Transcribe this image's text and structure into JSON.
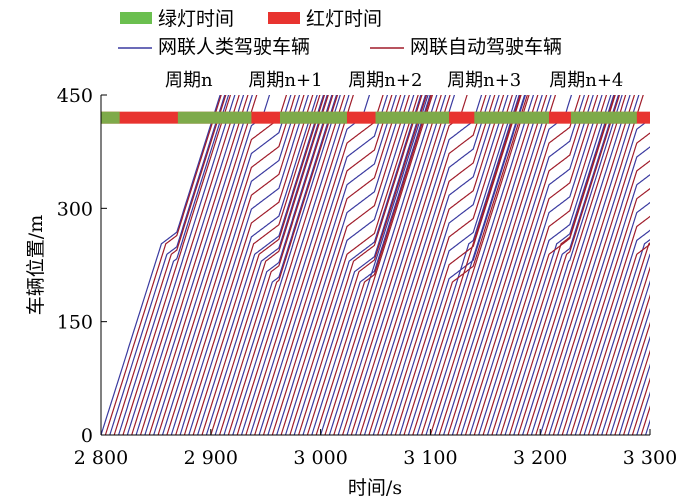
{
  "chart_data": {
    "type": "line",
    "xlabel": "时间/s",
    "ylabel": "车辆位置/m",
    "xlim": [
      2800,
      3300
    ],
    "ylim": [
      0,
      450
    ],
    "x_ticks": [
      2800,
      2900,
      3000,
      3100,
      3200,
      3300
    ],
    "x_tick_labels": [
      "2 800",
      "2 900",
      "3 000",
      "3 100",
      "3 200",
      "3 300"
    ],
    "y_ticks": [
      0,
      150,
      300,
      450
    ],
    "y_tick_labels": [
      "0",
      "150",
      "300",
      "450"
    ],
    "legend": {
      "placement": "top",
      "entries": [
        {
          "label": "绿灯时间",
          "color": "#6bbf4f",
          "kind": "bar"
        },
        {
          "label": "红灯时间",
          "color": "#e8332f",
          "kind": "bar"
        },
        {
          "label": "网联人类驾驶车辆",
          "color": "#3a3aa0",
          "kind": "line"
        },
        {
          "label": "网联自动驾驶车辆",
          "color": "#a01c2a",
          "kind": "line"
        }
      ]
    },
    "signal": {
      "position": 420,
      "green_phases": [
        [
          2800,
          2817
        ],
        [
          2870,
          2937
        ],
        [
          2963,
          3024
        ],
        [
          3050,
          3117
        ],
        [
          3140,
          3208
        ],
        [
          3228,
          3288
        ]
      ],
      "green_color": "#6bbf4f",
      "red_color": "#e8332f"
    },
    "cycle_labels": [
      {
        "label": "周期n",
        "x": 2880
      },
      {
        "label": "周期n+1",
        "x": 2968
      },
      {
        "label": "周期n+2",
        "x": 3059
      },
      {
        "label": "周期n+3",
        "x": 3149
      },
      {
        "label": "周期n+4",
        "x": 3242
      }
    ],
    "series": [
      {
        "color": "#3a3aa0",
        "start_times": [
          2800,
          2808,
          2816,
          2824,
          2832,
          2840,
          2848,
          2856,
          2864,
          2872,
          2880,
          2888,
          2896,
          2904,
          2912,
          2920,
          2928,
          2936,
          2944,
          2952,
          2960,
          2968,
          2976,
          2984,
          2992,
          3000,
          3008,
          3016,
          3024,
          3032,
          3040,
          3048,
          3056,
          3064,
          3072,
          3080,
          3088,
          3096,
          3104,
          3112,
          3120,
          3128,
          3136,
          3144,
          3152,
          3160,
          3168,
          3176,
          3184,
          3192,
          3200,
          3208,
          3216,
          3224,
          3232,
          3240,
          3248,
          3256,
          3264,
          3272,
          3280,
          3288,
          3296
        ]
      },
      {
        "color": "#a01c2a",
        "start_times": [
          2804,
          2812,
          2820,
          2828,
          2836,
          2844,
          2852,
          2860,
          2868,
          2876,
          2884,
          2892,
          2900,
          2908,
          2916,
          2924,
          2932,
          2940,
          2948,
          2956,
          2964,
          2972,
          2980,
          2988,
          2996,
          3004,
          3012,
          3020,
          3028,
          3036,
          3044,
          3052,
          3060,
          3068,
          3076,
          3084,
          3092,
          3100,
          3108,
          3116,
          3124,
          3132,
          3140,
          3148,
          3156,
          3164,
          3172,
          3180,
          3188,
          3196,
          3204,
          3212,
          3220,
          3228,
          3236,
          3244,
          3252,
          3260,
          3268,
          3276,
          3284,
          3292,
          3300
        ]
      }
    ]
  }
}
